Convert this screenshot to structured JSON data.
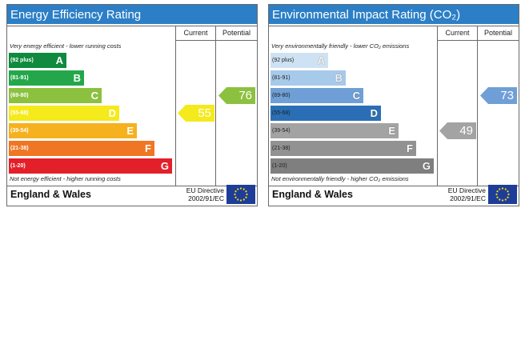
{
  "energy": {
    "title": "Energy Efficiency Rating",
    "col_current": "Current",
    "col_potential": "Potential",
    "top_note": "Very energy efficient - lower running costs",
    "bottom_note": "Not energy efficient - higher running costs",
    "bands": [
      {
        "range": "(92 plus)",
        "letter": "A",
        "color": "#108a3e"
      },
      {
        "range": "(81-91)",
        "letter": "B",
        "color": "#24a74a"
      },
      {
        "range": "(69-80)",
        "letter": "C",
        "color": "#8cc140"
      },
      {
        "range": "(55-68)",
        "letter": "D",
        "color": "#f4ea1c"
      },
      {
        "range": "(39-54)",
        "letter": "E",
        "color": "#f6b11f"
      },
      {
        "range": "(21-38)",
        "letter": "F",
        "color": "#ef7622"
      },
      {
        "range": "(1-20)",
        "letter": "G",
        "color": "#e3202a"
      }
    ],
    "current": {
      "value": "55",
      "band": "D",
      "color": "#f4ea1c"
    },
    "potential": {
      "value": "76",
      "band": "C",
      "color": "#8cc140"
    },
    "footer_region": "England & Wales",
    "footer_directive_line1": "EU Directive",
    "footer_directive_line2": "2002/91/EC"
  },
  "environment": {
    "title": "Environmental Impact Rating (CO₂)",
    "col_current": "Current",
    "col_potential": "Potential",
    "top_note": "Very environmentally friendly - lower CO₂ emissions",
    "bottom_note": "Not environmentally friendly - higher CO₂ emissions",
    "bands": [
      {
        "range": "(92 plus)",
        "letter": "A",
        "color": "#cfe2f3"
      },
      {
        "range": "(81-91)",
        "letter": "B",
        "color": "#a7c9ea"
      },
      {
        "range": "(69-80)",
        "letter": "C",
        "color": "#6f9fd6"
      },
      {
        "range": "(55-68)",
        "letter": "D",
        "color": "#2a6fb5"
      },
      {
        "range": "(39-54)",
        "letter": "E",
        "color": "#a3a3a3"
      },
      {
        "range": "(21-38)",
        "letter": "F",
        "color": "#929292"
      },
      {
        "range": "(1-20)",
        "letter": "G",
        "color": "#7f7f7f"
      }
    ],
    "current": {
      "value": "49",
      "band": "E",
      "color": "#a3a3a3"
    },
    "potential": {
      "value": "73",
      "band": "C",
      "color": "#6f9fd6"
    },
    "footer_region": "England & Wales",
    "footer_directive_line1": "EU Directive",
    "footer_directive_line2": "2002/91/EC"
  },
  "colors": {
    "title_bar": "#2c7fc6",
    "eu_flag": "#1d3d99",
    "eu_star": "#ffdf00"
  }
}
